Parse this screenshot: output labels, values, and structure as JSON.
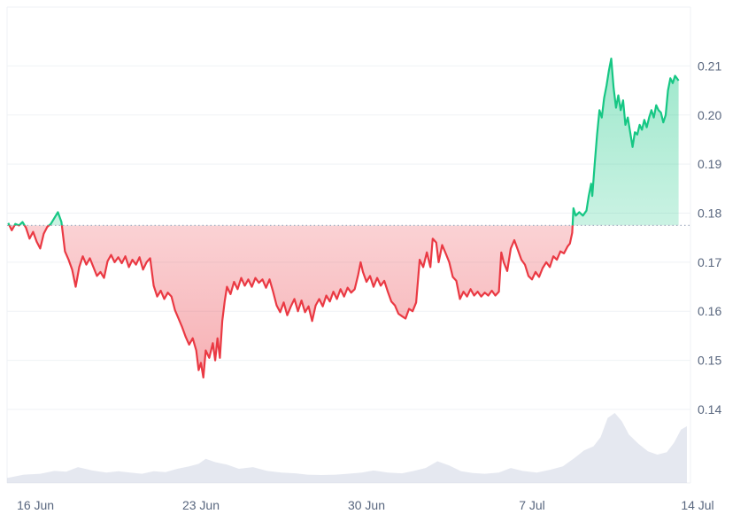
{
  "chart_data": {
    "type": "area",
    "title": "",
    "xlabel": "",
    "ylabel": "",
    "ylim": [
      0.125,
      0.222
    ],
    "y_ticks": [
      0.14,
      0.15,
      0.16,
      0.17,
      0.18,
      0.19,
      0.2,
      0.21
    ],
    "y_tick_labels": [
      "0.14",
      "0.15",
      "0.16",
      "0.17",
      "0.18",
      "0.19",
      "0.20",
      "0.21"
    ],
    "x_tick_labels": [
      "16 Jun",
      "23 Jun",
      "30 Jun",
      "7 Jul",
      "14 Jul"
    ],
    "x_range_days": [
      -1.2,
      27.7
    ],
    "x_ticks_days": [
      0,
      7,
      14,
      21,
      28
    ],
    "baseline": 0.1775,
    "grid": true,
    "legend": "none",
    "colors": {
      "above": "#16c784",
      "below": "#ea3943",
      "above_fill": "#16c784",
      "below_fill": "#ea3943",
      "volume": "#cfd6e4",
      "grid": "#eff2f5",
      "baseline": "#a6b0c3",
      "label": "#58667e"
    },
    "price_series": {
      "name": "",
      "points": [
        [
          -1.15,
          0.178
        ],
        [
          -1.0,
          0.1765
        ],
        [
          -0.85,
          0.1778
        ],
        [
          -0.7,
          0.1775
        ],
        [
          -0.55,
          0.1782
        ],
        [
          -0.4,
          0.177
        ],
        [
          -0.25,
          0.1748
        ],
        [
          -0.1,
          0.1762
        ],
        [
          0.05,
          0.1742
        ],
        [
          0.2,
          0.1728
        ],
        [
          0.35,
          0.1758
        ],
        [
          0.5,
          0.1772
        ],
        [
          0.65,
          0.1778
        ],
        [
          0.8,
          0.179
        ],
        [
          0.95,
          0.1802
        ],
        [
          1.1,
          0.1782
        ],
        [
          1.25,
          0.1722
        ],
        [
          1.4,
          0.1705
        ],
        [
          1.55,
          0.1685
        ],
        [
          1.7,
          0.165
        ],
        [
          1.85,
          0.169
        ],
        [
          2.0,
          0.1712
        ],
        [
          2.15,
          0.1695
        ],
        [
          2.3,
          0.1708
        ],
        [
          2.45,
          0.169
        ],
        [
          2.6,
          0.1672
        ],
        [
          2.75,
          0.168
        ],
        [
          2.9,
          0.1668
        ],
        [
          3.05,
          0.1702
        ],
        [
          3.2,
          0.1715
        ],
        [
          3.35,
          0.17
        ],
        [
          3.5,
          0.171
        ],
        [
          3.65,
          0.1698
        ],
        [
          3.8,
          0.1712
        ],
        [
          3.95,
          0.169
        ],
        [
          4.1,
          0.1705
        ],
        [
          4.25,
          0.1695
        ],
        [
          4.4,
          0.171
        ],
        [
          4.55,
          0.1685
        ],
        [
          4.7,
          0.17
        ],
        [
          4.85,
          0.1708
        ],
        [
          5.0,
          0.1652
        ],
        [
          5.15,
          0.163
        ],
        [
          5.3,
          0.1642
        ],
        [
          5.45,
          0.1625
        ],
        [
          5.6,
          0.1638
        ],
        [
          5.75,
          0.163
        ],
        [
          5.9,
          0.1602
        ],
        [
          6.05,
          0.1585
        ],
        [
          6.2,
          0.1568
        ],
        [
          6.35,
          0.1548
        ],
        [
          6.5,
          0.1532
        ],
        [
          6.65,
          0.1545
        ],
        [
          6.8,
          0.152
        ],
        [
          6.9,
          0.148
        ],
        [
          7.0,
          0.1495
        ],
        [
          7.1,
          0.1465
        ],
        [
          7.2,
          0.152
        ],
        [
          7.35,
          0.1505
        ],
        [
          7.5,
          0.1535
        ],
        [
          7.6,
          0.15
        ],
        [
          7.7,
          0.1545
        ],
        [
          7.8,
          0.1505
        ],
        [
          7.9,
          0.158
        ],
        [
          8.0,
          0.162
        ],
        [
          8.1,
          0.165
        ],
        [
          8.25,
          0.1635
        ],
        [
          8.4,
          0.166
        ],
        [
          8.55,
          0.1645
        ],
        [
          8.7,
          0.1668
        ],
        [
          8.85,
          0.1652
        ],
        [
          9.0,
          0.1665
        ],
        [
          9.15,
          0.165
        ],
        [
          9.3,
          0.1668
        ],
        [
          9.45,
          0.1658
        ],
        [
          9.6,
          0.1665
        ],
        [
          9.75,
          0.1648
        ],
        [
          9.9,
          0.1665
        ],
        [
          10.05,
          0.164
        ],
        [
          10.2,
          0.1612
        ],
        [
          10.35,
          0.1598
        ],
        [
          10.5,
          0.1618
        ],
        [
          10.65,
          0.1592
        ],
        [
          10.8,
          0.161
        ],
        [
          10.95,
          0.1625
        ],
        [
          11.1,
          0.16
        ],
        [
          11.25,
          0.1622
        ],
        [
          11.4,
          0.1598
        ],
        [
          11.55,
          0.161
        ],
        [
          11.7,
          0.158
        ],
        [
          11.85,
          0.1612
        ],
        [
          12.0,
          0.1625
        ],
        [
          12.15,
          0.161
        ],
        [
          12.3,
          0.1632
        ],
        [
          12.45,
          0.162
        ],
        [
          12.6,
          0.164
        ],
        [
          12.75,
          0.1625
        ],
        [
          12.9,
          0.1645
        ],
        [
          13.05,
          0.163
        ],
        [
          13.2,
          0.1648
        ],
        [
          13.35,
          0.1638
        ],
        [
          13.5,
          0.1645
        ],
        [
          13.65,
          0.1675
        ],
        [
          13.75,
          0.17
        ],
        [
          13.85,
          0.168
        ],
        [
          14.0,
          0.166
        ],
        [
          14.15,
          0.1672
        ],
        [
          14.3,
          0.165
        ],
        [
          14.45,
          0.1668
        ],
        [
          14.6,
          0.1652
        ],
        [
          14.75,
          0.1662
        ],
        [
          14.9,
          0.164
        ],
        [
          15.05,
          0.162
        ],
        [
          15.2,
          0.1612
        ],
        [
          15.35,
          0.1595
        ],
        [
          15.5,
          0.159
        ],
        [
          15.65,
          0.1585
        ],
        [
          15.8,
          0.1605
        ],
        [
          15.95,
          0.16
        ],
        [
          16.1,
          0.1618
        ],
        [
          16.25,
          0.1705
        ],
        [
          16.4,
          0.169
        ],
        [
          16.55,
          0.172
        ],
        [
          16.7,
          0.169
        ],
        [
          16.8,
          0.1748
        ],
        [
          16.95,
          0.174
        ],
        [
          17.05,
          0.17
        ],
        [
          17.2,
          0.1735
        ],
        [
          17.35,
          0.1718
        ],
        [
          17.5,
          0.17
        ],
        [
          17.65,
          0.167
        ],
        [
          17.8,
          0.1662
        ],
        [
          17.95,
          0.1625
        ],
        [
          18.1,
          0.164
        ],
        [
          18.25,
          0.163
        ],
        [
          18.4,
          0.1645
        ],
        [
          18.55,
          0.1632
        ],
        [
          18.7,
          0.164
        ],
        [
          18.85,
          0.163
        ],
        [
          19.0,
          0.1638
        ],
        [
          19.15,
          0.1632
        ],
        [
          19.3,
          0.1642
        ],
        [
          19.45,
          0.1632
        ],
        [
          19.6,
          0.164
        ],
        [
          19.7,
          0.172
        ],
        [
          19.8,
          0.17
        ],
        [
          19.95,
          0.1682
        ],
        [
          20.1,
          0.1728
        ],
        [
          20.25,
          0.1745
        ],
        [
          20.4,
          0.1725
        ],
        [
          20.55,
          0.1705
        ],
        [
          20.7,
          0.1695
        ],
        [
          20.85,
          0.1672
        ],
        [
          21.0,
          0.1665
        ],
        [
          21.15,
          0.168
        ],
        [
          21.3,
          0.167
        ],
        [
          21.45,
          0.1688
        ],
        [
          21.6,
          0.17
        ],
        [
          21.75,
          0.169
        ],
        [
          21.9,
          0.1712
        ],
        [
          22.05,
          0.1705
        ],
        [
          22.2,
          0.1722
        ],
        [
          22.35,
          0.1718
        ],
        [
          22.5,
          0.1732
        ],
        [
          22.6,
          0.1738
        ],
        [
          22.7,
          0.176
        ],
        [
          22.75,
          0.181
        ],
        [
          22.85,
          0.1795
        ],
        [
          23.0,
          0.1802
        ],
        [
          23.15,
          0.1795
        ],
        [
          23.3,
          0.1805
        ],
        [
          23.4,
          0.1835
        ],
        [
          23.5,
          0.186
        ],
        [
          23.55,
          0.1835
        ],
        [
          23.65,
          0.19
        ],
        [
          23.75,
          0.196
        ],
        [
          23.85,
          0.201
        ],
        [
          23.95,
          0.1995
        ],
        [
          24.05,
          0.2035
        ],
        [
          24.15,
          0.206
        ],
        [
          24.25,
          0.209
        ],
        [
          24.35,
          0.2115
        ],
        [
          24.45,
          0.2055
        ],
        [
          24.55,
          0.2015
        ],
        [
          24.65,
          0.204
        ],
        [
          24.75,
          0.201
        ],
        [
          24.85,
          0.203
        ],
        [
          24.95,
          0.198
        ],
        [
          25.05,
          0.1995
        ],
        [
          25.15,
          0.1965
        ],
        [
          25.25,
          0.1935
        ],
        [
          25.35,
          0.1965
        ],
        [
          25.45,
          0.196
        ],
        [
          25.55,
          0.198
        ],
        [
          25.65,
          0.197
        ],
        [
          25.75,
          0.199
        ],
        [
          25.85,
          0.1975
        ],
        [
          25.95,
          0.1995
        ],
        [
          26.05,
          0.201
        ],
        [
          26.15,
          0.1995
        ],
        [
          26.25,
          0.202
        ],
        [
          26.35,
          0.201
        ],
        [
          26.45,
          0.2005
        ],
        [
          26.55,
          0.1985
        ],
        [
          26.65,
          0.2
        ],
        [
          26.75,
          0.205
        ],
        [
          26.85,
          0.2075
        ],
        [
          26.95,
          0.2065
        ],
        [
          27.05,
          0.208
        ],
        [
          27.2,
          0.207
        ]
      ]
    },
    "volume_series": {
      "name": "",
      "points": [
        [
          -1.2,
          0.3
        ],
        [
          -0.5,
          0.5
        ],
        [
          0.2,
          0.55
        ],
        [
          0.8,
          0.72
        ],
        [
          1.3,
          0.68
        ],
        [
          1.8,
          0.95
        ],
        [
          2.4,
          0.75
        ],
        [
          3.0,
          0.62
        ],
        [
          3.5,
          0.7
        ],
        [
          4.0,
          0.62
        ],
        [
          4.5,
          0.55
        ],
        [
          5.0,
          0.7
        ],
        [
          5.5,
          0.65
        ],
        [
          6.0,
          0.85
        ],
        [
          6.5,
          1.0
        ],
        [
          6.9,
          1.15
        ],
        [
          7.2,
          1.45
        ],
        [
          7.6,
          1.25
        ],
        [
          8.1,
          1.1
        ],
        [
          8.6,
          0.85
        ],
        [
          9.2,
          0.95
        ],
        [
          9.8,
          0.72
        ],
        [
          10.4,
          0.62
        ],
        [
          11.0,
          0.58
        ],
        [
          11.5,
          0.5
        ],
        [
          12.1,
          0.48
        ],
        [
          12.7,
          0.5
        ],
        [
          13.2,
          0.55
        ],
        [
          13.8,
          0.62
        ],
        [
          14.3,
          0.75
        ],
        [
          14.9,
          0.62
        ],
        [
          15.5,
          0.58
        ],
        [
          16.0,
          0.72
        ],
        [
          16.5,
          0.9
        ],
        [
          17.0,
          1.3
        ],
        [
          17.5,
          1.05
        ],
        [
          18.0,
          0.7
        ],
        [
          18.5,
          0.6
        ],
        [
          19.0,
          0.55
        ],
        [
          19.6,
          0.62
        ],
        [
          20.1,
          0.9
        ],
        [
          20.6,
          0.72
        ],
        [
          21.2,
          0.62
        ],
        [
          21.8,
          0.8
        ],
        [
          22.3,
          1.0
        ],
        [
          22.8,
          1.5
        ],
        [
          23.2,
          1.95
        ],
        [
          23.6,
          2.2
        ],
        [
          23.9,
          2.75
        ],
        [
          24.2,
          3.9
        ],
        [
          24.5,
          4.2
        ],
        [
          24.8,
          3.7
        ],
        [
          25.1,
          2.9
        ],
        [
          25.5,
          2.35
        ],
        [
          25.9,
          1.9
        ],
        [
          26.3,
          1.7
        ],
        [
          26.7,
          1.85
        ],
        [
          27.0,
          2.4
        ],
        [
          27.3,
          3.2
        ],
        [
          27.55,
          3.4
        ]
      ]
    }
  }
}
